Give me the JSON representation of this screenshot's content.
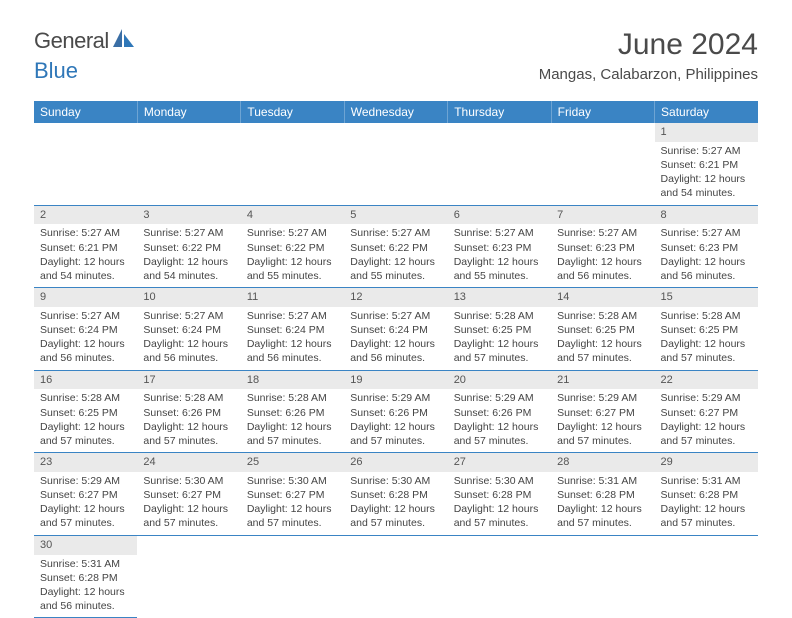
{
  "logo": {
    "word1": "General",
    "word2": "Blue"
  },
  "title": "June 2024",
  "location": "Mangas, Calabarzon, Philippines",
  "colors": {
    "header_bg": "#3a84c4",
    "header_text": "#ffffff",
    "daynum_bg": "#eaeaea",
    "cell_border": "#3a84c4",
    "body_text": "#444444",
    "title_text": "#4a4a4a",
    "logo_accent": "#2f77b8"
  },
  "typography": {
    "title_fontsize": 30,
    "location_fontsize": 15,
    "dayhead_fontsize": 12,
    "daynum_fontsize": 11,
    "cell_fontsize": 10.5
  },
  "day_headers": [
    "Sunday",
    "Monday",
    "Tuesday",
    "Wednesday",
    "Thursday",
    "Friday",
    "Saturday"
  ],
  "label_prefix": {
    "sunrise": "Sunrise: ",
    "sunset": "Sunset: ",
    "daylight": "Daylight: "
  },
  "weeks": [
    [
      null,
      null,
      null,
      null,
      null,
      null,
      {
        "n": "1",
        "sr": "5:27 AM",
        "ss": "6:21 PM",
        "dl": "12 hours and 54 minutes."
      }
    ],
    [
      {
        "n": "2",
        "sr": "5:27 AM",
        "ss": "6:21 PM",
        "dl": "12 hours and 54 minutes."
      },
      {
        "n": "3",
        "sr": "5:27 AM",
        "ss": "6:22 PM",
        "dl": "12 hours and 54 minutes."
      },
      {
        "n": "4",
        "sr": "5:27 AM",
        "ss": "6:22 PM",
        "dl": "12 hours and 55 minutes."
      },
      {
        "n": "5",
        "sr": "5:27 AM",
        "ss": "6:22 PM",
        "dl": "12 hours and 55 minutes."
      },
      {
        "n": "6",
        "sr": "5:27 AM",
        "ss": "6:23 PM",
        "dl": "12 hours and 55 minutes."
      },
      {
        "n": "7",
        "sr": "5:27 AM",
        "ss": "6:23 PM",
        "dl": "12 hours and 56 minutes."
      },
      {
        "n": "8",
        "sr": "5:27 AM",
        "ss": "6:23 PM",
        "dl": "12 hours and 56 minutes."
      }
    ],
    [
      {
        "n": "9",
        "sr": "5:27 AM",
        "ss": "6:24 PM",
        "dl": "12 hours and 56 minutes."
      },
      {
        "n": "10",
        "sr": "5:27 AM",
        "ss": "6:24 PM",
        "dl": "12 hours and 56 minutes."
      },
      {
        "n": "11",
        "sr": "5:27 AM",
        "ss": "6:24 PM",
        "dl": "12 hours and 56 minutes."
      },
      {
        "n": "12",
        "sr": "5:27 AM",
        "ss": "6:24 PM",
        "dl": "12 hours and 56 minutes."
      },
      {
        "n": "13",
        "sr": "5:28 AM",
        "ss": "6:25 PM",
        "dl": "12 hours and 57 minutes."
      },
      {
        "n": "14",
        "sr": "5:28 AM",
        "ss": "6:25 PM",
        "dl": "12 hours and 57 minutes."
      },
      {
        "n": "15",
        "sr": "5:28 AM",
        "ss": "6:25 PM",
        "dl": "12 hours and 57 minutes."
      }
    ],
    [
      {
        "n": "16",
        "sr": "5:28 AM",
        "ss": "6:25 PM",
        "dl": "12 hours and 57 minutes."
      },
      {
        "n": "17",
        "sr": "5:28 AM",
        "ss": "6:26 PM",
        "dl": "12 hours and 57 minutes."
      },
      {
        "n": "18",
        "sr": "5:28 AM",
        "ss": "6:26 PM",
        "dl": "12 hours and 57 minutes."
      },
      {
        "n": "19",
        "sr": "5:29 AM",
        "ss": "6:26 PM",
        "dl": "12 hours and 57 minutes."
      },
      {
        "n": "20",
        "sr": "5:29 AM",
        "ss": "6:26 PM",
        "dl": "12 hours and 57 minutes."
      },
      {
        "n": "21",
        "sr": "5:29 AM",
        "ss": "6:27 PM",
        "dl": "12 hours and 57 minutes."
      },
      {
        "n": "22",
        "sr": "5:29 AM",
        "ss": "6:27 PM",
        "dl": "12 hours and 57 minutes."
      }
    ],
    [
      {
        "n": "23",
        "sr": "5:29 AM",
        "ss": "6:27 PM",
        "dl": "12 hours and 57 minutes."
      },
      {
        "n": "24",
        "sr": "5:30 AM",
        "ss": "6:27 PM",
        "dl": "12 hours and 57 minutes."
      },
      {
        "n": "25",
        "sr": "5:30 AM",
        "ss": "6:27 PM",
        "dl": "12 hours and 57 minutes."
      },
      {
        "n": "26",
        "sr": "5:30 AM",
        "ss": "6:28 PM",
        "dl": "12 hours and 57 minutes."
      },
      {
        "n": "27",
        "sr": "5:30 AM",
        "ss": "6:28 PM",
        "dl": "12 hours and 57 minutes."
      },
      {
        "n": "28",
        "sr": "5:31 AM",
        "ss": "6:28 PM",
        "dl": "12 hours and 57 minutes."
      },
      {
        "n": "29",
        "sr": "5:31 AM",
        "ss": "6:28 PM",
        "dl": "12 hours and 57 minutes."
      }
    ],
    [
      {
        "n": "30",
        "sr": "5:31 AM",
        "ss": "6:28 PM",
        "dl": "12 hours and 56 minutes."
      },
      null,
      null,
      null,
      null,
      null,
      null
    ]
  ]
}
